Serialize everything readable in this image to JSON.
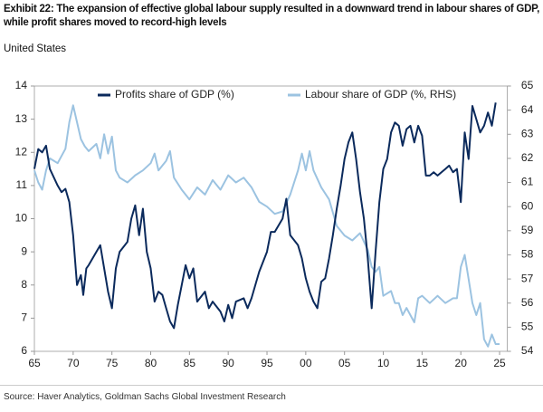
{
  "chart_data": {
    "type": "line",
    "title": "Exhibit 22: The expansion of effective global labour supply resulted in a downward trend in labour shares of GDP, while profit shares moved to record-high levels",
    "subtitle": "United States",
    "source": "Source: Haver Analytics, Goldman Sachs Global Investment Research",
    "legend": "top",
    "xlim": [
      1965,
      2026
    ],
    "xticks": [
      {
        "value": 1965,
        "label": "65"
      },
      {
        "value": 1970,
        "label": "70"
      },
      {
        "value": 1975,
        "label": "75"
      },
      {
        "value": 1980,
        "label": "80"
      },
      {
        "value": 1985,
        "label": "85"
      },
      {
        "value": 1990,
        "label": "90"
      },
      {
        "value": 1995,
        "label": "95"
      },
      {
        "value": 2000,
        "label": "00"
      },
      {
        "value": 2005,
        "label": "05"
      },
      {
        "value": 2010,
        "label": "10"
      },
      {
        "value": 2015,
        "label": "15"
      },
      {
        "value": 2020,
        "label": "20"
      },
      {
        "value": 2025,
        "label": "25"
      }
    ],
    "ylim": [
      6,
      14
    ],
    "yticks": [
      6,
      7,
      8,
      9,
      10,
      11,
      12,
      13,
      14
    ],
    "y2lim": [
      54,
      65
    ],
    "y2ticks": [
      54,
      55,
      56,
      57,
      58,
      59,
      60,
      61,
      62,
      63,
      64,
      65
    ],
    "series": [
      {
        "name": "Profits share of GDP (%)",
        "color": "#0b2a5c",
        "axis": "y",
        "x": [
          1965,
          1965.5,
          1966,
          1966.5,
          1967,
          1968,
          1968.5,
          1969,
          1969.5,
          1970,
          1970.5,
          1971,
          1971.3,
          1971.7,
          1972,
          1973,
          1973.5,
          1974,
          1974.5,
          1975,
          1975.5,
          1976,
          1977,
          1977.5,
          1978,
          1978.5,
          1979,
          1979.5,
          1980,
          1980.5,
          1981,
          1981.5,
          1982,
          1982.5,
          1983,
          1983.5,
          1984,
          1984.5,
          1985,
          1985.5,
          1986,
          1987,
          1987.5,
          1988,
          1989,
          1989.5,
          1990,
          1990.5,
          1991,
          1992,
          1992.5,
          1993,
          1994,
          1995,
          1995.5,
          1996,
          1997,
          1997.5,
          1998,
          1999,
          1999.5,
          2000,
          2000.5,
          2001,
          2001.5,
          2002,
          2002.5,
          2003,
          2003.5,
          2004,
          2004.5,
          2005,
          2005.5,
          2006,
          2006.5,
          2007,
          2007.5,
          2008,
          2008.5,
          2009,
          2009.5,
          2010,
          2010.5,
          2011,
          2011.5,
          2012,
          2012.5,
          2013,
          2013.5,
          2014,
          2014.5,
          2015,
          2015.5,
          2016,
          2016.5,
          2017,
          2017.5,
          2018,
          2018.5,
          2019,
          2019.5,
          2020,
          2020.5,
          2021,
          2021.5,
          2022,
          2022.5,
          2023,
          2023.5,
          2024,
          2024.5
        ],
        "values": [
          11.5,
          12.1,
          12.0,
          12.2,
          11.5,
          11.0,
          10.8,
          10.9,
          10.5,
          9.5,
          8.0,
          8.3,
          7.7,
          8.5,
          8.6,
          9.0,
          9.2,
          8.5,
          7.8,
          7.3,
          8.5,
          9.0,
          9.3,
          10.0,
          10.4,
          9.5,
          10.3,
          9.0,
          8.5,
          7.5,
          7.8,
          7.7,
          7.3,
          6.9,
          6.7,
          7.4,
          8.0,
          8.6,
          8.2,
          8.5,
          7.5,
          7.8,
          7.3,
          7.5,
          7.2,
          6.9,
          7.4,
          7.0,
          7.5,
          7.6,
          7.3,
          7.6,
          8.4,
          9.0,
          9.6,
          9.6,
          10.0,
          10.6,
          9.5,
          9.2,
          8.8,
          8.2,
          7.8,
          7.5,
          7.3,
          8.1,
          8.2,
          8.8,
          9.5,
          10.3,
          11.0,
          11.8,
          12.3,
          12.6,
          11.8,
          10.8,
          10.0,
          8.8,
          7.3,
          9.0,
          10.5,
          11.5,
          11.8,
          12.6,
          12.9,
          12.8,
          12.2,
          12.7,
          12.8,
          12.3,
          12.8,
          12.5,
          11.3,
          11.3,
          11.4,
          11.3,
          11.4,
          11.5,
          11.6,
          11.4,
          11.5,
          10.5,
          12.6,
          11.8,
          13.4,
          13.0,
          12.6,
          12.8,
          13.2,
          12.8,
          13.5
        ]
      },
      {
        "name": "Labour share of GDP (%, RHS)",
        "color": "#9cc3e1",
        "axis": "y2",
        "x": [
          1965,
          1965.5,
          1966,
          1966.5,
          1967,
          1968,
          1969,
          1969.5,
          1970,
          1970.5,
          1971,
          1971.5,
          1972,
          1973,
          1973.5,
          1974,
          1974.5,
          1975,
          1975.5,
          1976,
          1977,
          1978,
          1979,
          1980,
          1980.5,
          1981,
          1982,
          1982.5,
          1983,
          1984,
          1985,
          1986,
          1987,
          1988,
          1989,
          1990,
          1991,
          1992,
          1993,
          1994,
          1995,
          1996,
          1997,
          1998,
          1999,
          1999.5,
          2000,
          2000.5,
          2001,
          2002,
          2003,
          2004,
          2005,
          2006,
          2007,
          2008,
          2008.5,
          2009,
          2009.5,
          2010,
          2011,
          2011.5,
          2012,
          2012.5,
          2013,
          2014,
          2014.5,
          2015,
          2016,
          2017,
          2018,
          2019,
          2019.5,
          2020,
          2020.5,
          2021,
          2021.5,
          2022,
          2022.5,
          2023,
          2023.5,
          2024,
          2024.5,
          2025
        ],
        "values": [
          61.5,
          61.0,
          60.7,
          61.5,
          62.0,
          61.8,
          62.4,
          63.5,
          64.2,
          63.5,
          62.8,
          62.5,
          62.3,
          62.6,
          62.0,
          63.0,
          62.2,
          62.9,
          61.5,
          61.2,
          61.0,
          61.3,
          61.5,
          61.8,
          62.2,
          61.5,
          61.9,
          62.3,
          61.2,
          60.7,
          60.3,
          60.8,
          60.5,
          61.1,
          60.7,
          61.3,
          61.0,
          61.2,
          60.8,
          60.2,
          60.0,
          59.7,
          59.8,
          60.5,
          61.5,
          62.2,
          61.5,
          62.3,
          61.5,
          60.8,
          60.3,
          59.2,
          58.8,
          58.6,
          58.9,
          58.2,
          57.5,
          57.3,
          57.5,
          56.3,
          56.5,
          56.0,
          56.0,
          55.5,
          55.8,
          55.2,
          56.2,
          56.3,
          56.0,
          56.3,
          56.0,
          56.2,
          56.2,
          57.5,
          58.0,
          57.0,
          56.0,
          55.5,
          56.0,
          54.5,
          54.2,
          54.7,
          54.3,
          54.3
        ]
      }
    ]
  }
}
